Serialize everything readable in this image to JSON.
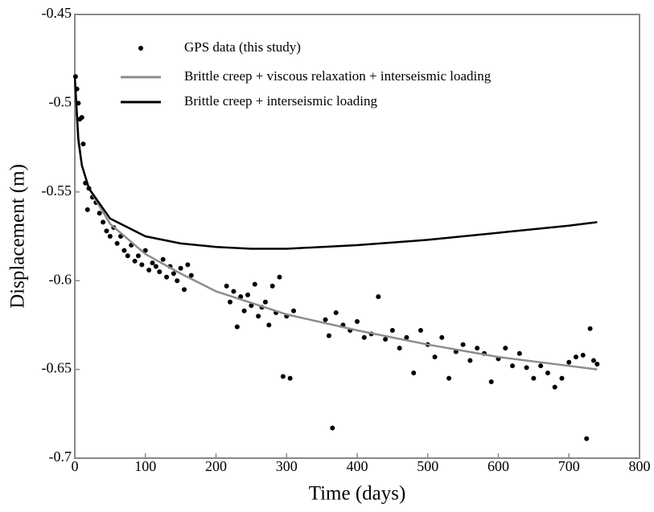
{
  "chart_data": {
    "type": "scatter",
    "xlabel": "Time (days)",
    "ylabel": "Displacement (m)",
    "xlim": [
      0,
      800
    ],
    "xticks": [
      0,
      100,
      200,
      300,
      400,
      500,
      600,
      700,
      800
    ],
    "ylim": [
      -0.7,
      -0.45
    ],
    "yticks": [
      -0.7,
      -0.65,
      -0.6,
      -0.55,
      -0.5,
      -0.45
    ],
    "series": [
      {
        "name": "GPS data (this study)",
        "mode": "markers",
        "color": "#000000",
        "x": [
          1,
          3,
          5,
          7,
          10,
          12,
          15,
          18,
          20,
          25,
          30,
          35,
          40,
          45,
          50,
          55,
          60,
          65,
          70,
          75,
          80,
          85,
          90,
          95,
          100,
          105,
          110,
          115,
          120,
          125,
          130,
          135,
          140,
          145,
          150,
          155,
          160,
          165,
          215,
          220,
          225,
          230,
          235,
          240,
          245,
          250,
          255,
          260,
          265,
          270,
          275,
          280,
          285,
          290,
          295,
          300,
          305,
          310,
          355,
          360,
          365,
          370,
          380,
          390,
          400,
          410,
          420,
          430,
          440,
          450,
          460,
          470,
          480,
          490,
          500,
          510,
          520,
          530,
          540,
          550,
          560,
          570,
          580,
          590,
          600,
          610,
          620,
          630,
          640,
          650,
          660,
          670,
          680,
          690,
          700,
          710,
          720,
          725,
          730,
          735,
          740
        ],
        "values": [
          -0.485,
          -0.492,
          -0.5,
          -0.509,
          -0.508,
          -0.523,
          -0.545,
          -0.56,
          -0.548,
          -0.553,
          -0.556,
          -0.562,
          -0.567,
          -0.572,
          -0.575,
          -0.57,
          -0.579,
          -0.575,
          -0.583,
          -0.586,
          -0.58,
          -0.589,
          -0.586,
          -0.591,
          -0.583,
          -0.594,
          -0.59,
          -0.592,
          -0.595,
          -0.588,
          -0.598,
          -0.592,
          -0.596,
          -0.6,
          -0.593,
          -0.605,
          -0.591,
          -0.597,
          -0.603,
          -0.612,
          -0.606,
          -0.626,
          -0.609,
          -0.617,
          -0.608,
          -0.614,
          -0.602,
          -0.62,
          -0.615,
          -0.612,
          -0.625,
          -0.603,
          -0.618,
          -0.598,
          -0.654,
          -0.62,
          -0.655,
          -0.617,
          -0.622,
          -0.631,
          -0.683,
          -0.618,
          -0.625,
          -0.628,
          -0.623,
          -0.632,
          -0.63,
          -0.609,
          -0.633,
          -0.628,
          -0.638,
          -0.632,
          -0.652,
          -0.628,
          -0.636,
          -0.643,
          -0.632,
          -0.655,
          -0.64,
          -0.636,
          -0.645,
          -0.638,
          -0.641,
          -0.657,
          -0.644,
          -0.638,
          -0.648,
          -0.641,
          -0.649,
          -0.655,
          -0.648,
          -0.652,
          -0.66,
          -0.655,
          -0.646,
          -0.643,
          -0.642,
          -0.689,
          -0.627,
          -0.645,
          -0.647
        ]
      },
      {
        "name": "Brittle creep + viscous relaxation + interseismic loading",
        "mode": "lines",
        "color": "#8c8c8c",
        "x": [
          0,
          5,
          10,
          20,
          50,
          100,
          150,
          200,
          300,
          400,
          500,
          600,
          700,
          740
        ],
        "values": [
          -0.49,
          -0.522,
          -0.535,
          -0.548,
          -0.568,
          -0.585,
          -0.596,
          -0.606,
          -0.619,
          -0.628,
          -0.636,
          -0.643,
          -0.648,
          -0.65
        ]
      },
      {
        "name": "Brittle creep + interseismic loading",
        "mode": "lines",
        "color": "#000000",
        "x": [
          0,
          5,
          10,
          20,
          50,
          100,
          150,
          200,
          250,
          300,
          400,
          500,
          600,
          700,
          740
        ],
        "values": [
          -0.485,
          -0.52,
          -0.535,
          -0.548,
          -0.565,
          -0.575,
          -0.579,
          -0.581,
          -0.582,
          -0.582,
          -0.58,
          -0.577,
          -0.573,
          -0.569,
          -0.567
        ]
      }
    ]
  }
}
